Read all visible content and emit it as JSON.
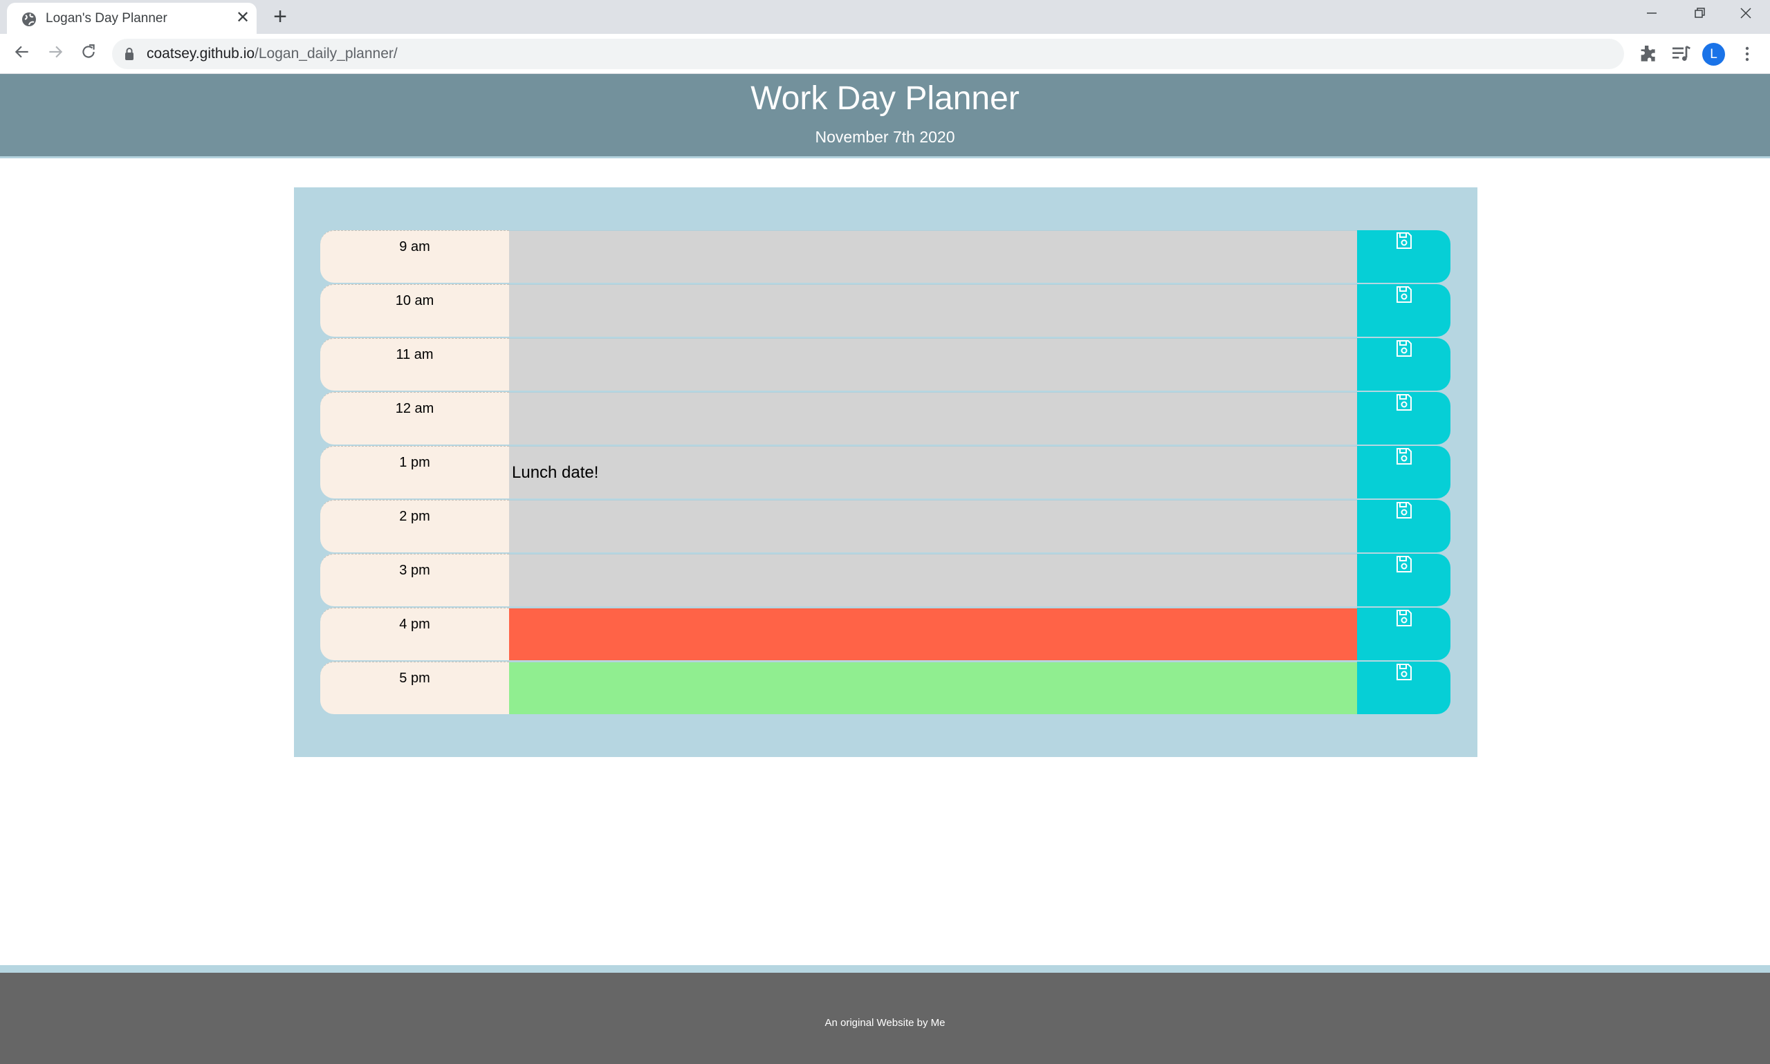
{
  "browser": {
    "tab_title": "Logan's Day Planner",
    "tab_close_glyph": "✕",
    "new_tab_glyph": "+",
    "url_host": "coatsey.github.io",
    "url_path": "/Logan_daily_planner/",
    "avatar_letter": "L",
    "icons": [
      "globe-icon",
      "back-icon",
      "forward-icon",
      "reload-icon",
      "lock-icon",
      "star-icon",
      "extensions-icon",
      "media-icon",
      "menu-icon",
      "minimize-icon",
      "restore-icon",
      "close-icon"
    ]
  },
  "header": {
    "title": "Work Day Planner",
    "date": "November 7th 2020"
  },
  "planner": {
    "rows": [
      {
        "hour": "9 am",
        "text": "",
        "state": "past"
      },
      {
        "hour": "10 am",
        "text": "",
        "state": "past"
      },
      {
        "hour": "11 am",
        "text": "",
        "state": "past"
      },
      {
        "hour": "12 am",
        "text": "",
        "state": "past"
      },
      {
        "hour": "1 pm",
        "text": "Lunch date!",
        "state": "past"
      },
      {
        "hour": "2 pm",
        "text": "",
        "state": "past"
      },
      {
        "hour": "3 pm",
        "text": "",
        "state": "past"
      },
      {
        "hour": "4 pm",
        "text": "",
        "state": "present"
      },
      {
        "hour": "5 pm",
        "text": "",
        "state": "future"
      }
    ],
    "save_icon": "save-icon"
  },
  "colors": {
    "header_bg": "#73919c",
    "container_bg": "#b6d6e1",
    "past": "#d3d3d3",
    "present": "#ff6347",
    "future": "#90ee90",
    "save_button": "#06cfd6",
    "hour_bg": "#faefe5",
    "footer_bg": "#666666"
  },
  "footer": {
    "text": "An original Website by Me"
  }
}
